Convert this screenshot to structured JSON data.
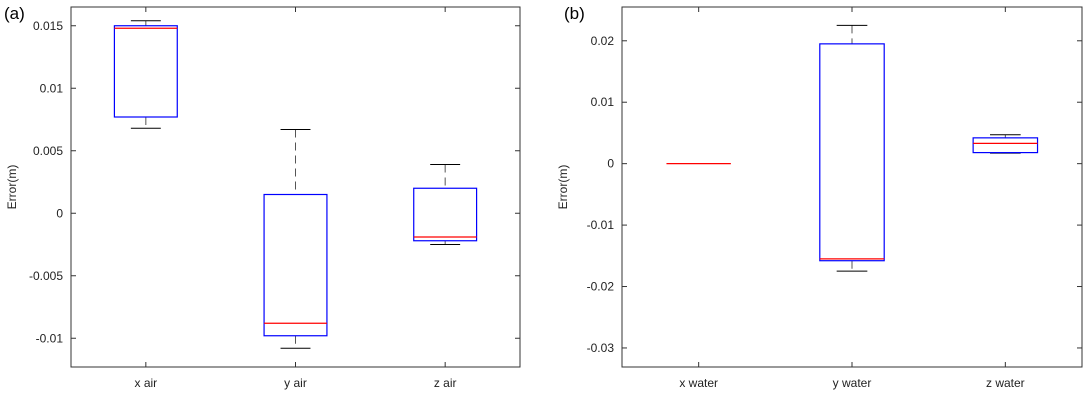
{
  "chart_data": [
    {
      "type": "box",
      "panel_label": "(a)",
      "ylabel": "Error(m)",
      "ylim": [
        -0.0123,
        0.0165
      ],
      "yticks": [
        0.015,
        0.01,
        0.005,
        0,
        -0.005,
        -0.01
      ],
      "ytick_labels": [
        "0.015",
        "0.01",
        "0.005",
        "0",
        "-0.005",
        "-0.01"
      ],
      "categories": [
        "x air",
        "y air",
        "z air"
      ],
      "boxes": [
        {
          "label": "x air",
          "whisker_low": 0.0068,
          "q1": 0.0077,
          "median": 0.0148,
          "q3": 0.015,
          "whisker_high": 0.0154
        },
        {
          "label": "y air",
          "whisker_low": -0.0108,
          "q1": -0.0098,
          "median": -0.0088,
          "q3": 0.0015,
          "whisker_high": 0.0067
        },
        {
          "label": "z air",
          "whisker_low": -0.0025,
          "q1": -0.0022,
          "median": -0.0019,
          "q3": 0.002,
          "whisker_high": 0.0039
        }
      ],
      "colors": {
        "box": "#0000ff",
        "median": "#ff0000",
        "whisker": "#000000"
      }
    },
    {
      "type": "box",
      "panel_label": "(b)",
      "ylabel": "Error(m)",
      "ylim": [
        -0.0331,
        0.0255
      ],
      "yticks": [
        0.02,
        0.01,
        0,
        -0.01,
        -0.02,
        -0.03
      ],
      "ytick_labels": [
        "0.02",
        "0.01",
        "0",
        "-0.01",
        "-0.02",
        "-0.03"
      ],
      "categories": [
        "x water",
        "y water",
        "z water"
      ],
      "boxes": [
        {
          "label": "x water",
          "whisker_low": 0,
          "q1": 0,
          "median": 0,
          "q3": 0,
          "whisker_high": 0
        },
        {
          "label": "y water",
          "whisker_low": -0.0175,
          "q1": -0.0158,
          "median": -0.0155,
          "q3": 0.0195,
          "whisker_high": 0.0225
        },
        {
          "label": "z water",
          "whisker_low": 0.0018,
          "q1": 0.0018,
          "median": 0.0033,
          "q3": 0.0042,
          "whisker_high": 0.0047
        }
      ],
      "colors": {
        "box": "#0000ff",
        "median": "#ff0000",
        "whisker": "#000000"
      }
    }
  ]
}
